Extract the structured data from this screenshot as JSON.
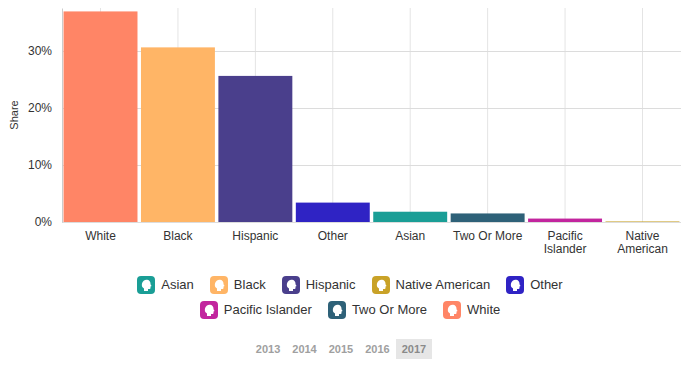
{
  "chart_data": {
    "type": "bar",
    "ylabel": "Share",
    "categories": [
      "White",
      "Black",
      "Hispanic",
      "Other",
      "Asian",
      "Two Or More",
      "Pacific Islander",
      "Native American"
    ],
    "series": [
      {
        "name": "Asian",
        "color": "#1a9e96",
        "values": [
          null,
          null,
          null,
          null,
          1.8,
          null,
          null,
          null
        ]
      },
      {
        "name": "Black",
        "color": "#ffb566",
        "values": [
          null,
          30.6,
          null,
          null,
          null,
          null,
          null,
          null
        ]
      },
      {
        "name": "Hispanic",
        "color": "#4a3f8c",
        "values": [
          null,
          null,
          25.6,
          null,
          null,
          null,
          null,
          null
        ]
      },
      {
        "name": "Native American",
        "color": "#c9a227",
        "values": [
          null,
          null,
          null,
          null,
          null,
          null,
          null,
          0.1
        ]
      },
      {
        "name": "Other",
        "color": "#2f23c4",
        "values": [
          null,
          null,
          null,
          3.4,
          null,
          null,
          null,
          null
        ]
      },
      {
        "name": "Pacific Islander",
        "color": "#c2259e",
        "values": [
          null,
          null,
          null,
          null,
          null,
          null,
          0.6,
          null
        ]
      },
      {
        "name": "Two Or More",
        "color": "#2e6178",
        "values": [
          null,
          null,
          null,
          null,
          null,
          1.5,
          null,
          null
        ]
      },
      {
        "name": "White",
        "color": "#ff8566",
        "values": [
          36.9,
          null,
          null,
          null,
          null,
          null,
          null,
          null
        ]
      }
    ],
    "ylim": [
      0,
      37.5
    ],
    "yticks": [
      {
        "value": 0,
        "label": "0%"
      },
      {
        "value": 10,
        "label": "10%"
      },
      {
        "value": 20,
        "label": "20%"
      },
      {
        "value": 30,
        "label": "30%"
      }
    ],
    "grid": true,
    "legend": "bottom",
    "years": [
      "2013",
      "2014",
      "2015",
      "2016",
      "2017"
    ],
    "selected_year": "2017"
  }
}
